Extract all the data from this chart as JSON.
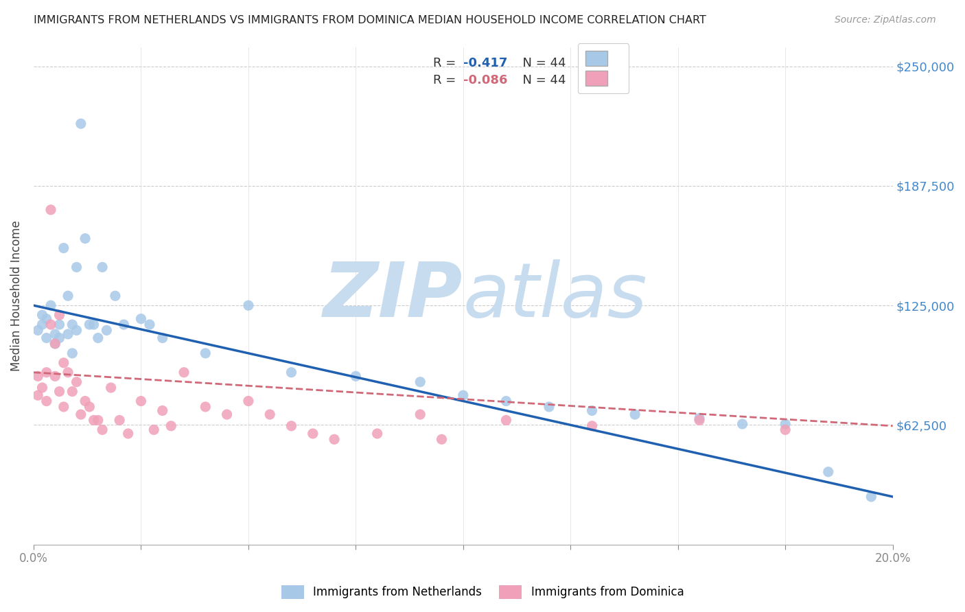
{
  "title": "IMMIGRANTS FROM NETHERLANDS VS IMMIGRANTS FROM DOMINICA MEDIAN HOUSEHOLD INCOME CORRELATION CHART",
  "source": "Source: ZipAtlas.com",
  "ylabel": "Median Household Income",
  "y_ticks": [
    0,
    62500,
    125000,
    187500,
    250000
  ],
  "y_tick_labels": [
    "",
    "$62,500",
    "$125,000",
    "$187,500",
    "$250,000"
  ],
  "x_min": 0.0,
  "x_max": 0.2,
  "y_min": 0,
  "y_max": 260000,
  "r_netherlands": -0.417,
  "n_netherlands": 44,
  "r_dominica": -0.086,
  "n_dominica": 44,
  "color_netherlands": "#A8C8E8",
  "color_dominica": "#F0A0B8",
  "color_netherlands_line": "#2060B0",
  "color_dominica_line": "#D06878",
  "watermark_color": "#C8DCF0",
  "netherlands_x": [
    0.001,
    0.002,
    0.002,
    0.003,
    0.003,
    0.004,
    0.005,
    0.005,
    0.006,
    0.006,
    0.007,
    0.008,
    0.008,
    0.009,
    0.009,
    0.01,
    0.01,
    0.011,
    0.012,
    0.013,
    0.014,
    0.015,
    0.016,
    0.017,
    0.019,
    0.021,
    0.025,
    0.027,
    0.03,
    0.04,
    0.05,
    0.06,
    0.075,
    0.09,
    0.1,
    0.11,
    0.12,
    0.13,
    0.14,
    0.155,
    0.165,
    0.175,
    0.185,
    0.195
  ],
  "netherlands_y": [
    112000,
    120000,
    115000,
    118000,
    108000,
    125000,
    110000,
    105000,
    115000,
    108000,
    155000,
    130000,
    110000,
    115000,
    100000,
    145000,
    112000,
    220000,
    160000,
    115000,
    115000,
    108000,
    145000,
    112000,
    130000,
    115000,
    118000,
    115000,
    108000,
    100000,
    125000,
    90000,
    88000,
    85000,
    78000,
    75000,
    72000,
    70000,
    68000,
    66000,
    63000,
    63000,
    38000,
    25000
  ],
  "dominica_x": [
    0.001,
    0.001,
    0.002,
    0.003,
    0.003,
    0.004,
    0.004,
    0.005,
    0.005,
    0.006,
    0.006,
    0.007,
    0.007,
    0.008,
    0.009,
    0.01,
    0.011,
    0.012,
    0.013,
    0.014,
    0.015,
    0.016,
    0.018,
    0.02,
    0.022,
    0.025,
    0.028,
    0.03,
    0.032,
    0.035,
    0.04,
    0.045,
    0.05,
    0.055,
    0.06,
    0.065,
    0.07,
    0.08,
    0.09,
    0.095,
    0.11,
    0.13,
    0.155,
    0.175
  ],
  "dominica_y": [
    88000,
    78000,
    82000,
    90000,
    75000,
    175000,
    115000,
    105000,
    88000,
    120000,
    80000,
    95000,
    72000,
    90000,
    80000,
    85000,
    68000,
    75000,
    72000,
    65000,
    65000,
    60000,
    82000,
    65000,
    58000,
    75000,
    60000,
    70000,
    62000,
    90000,
    72000,
    68000,
    75000,
    68000,
    62000,
    58000,
    55000,
    58000,
    68000,
    55000,
    65000,
    62000,
    65000,
    60000
  ]
}
